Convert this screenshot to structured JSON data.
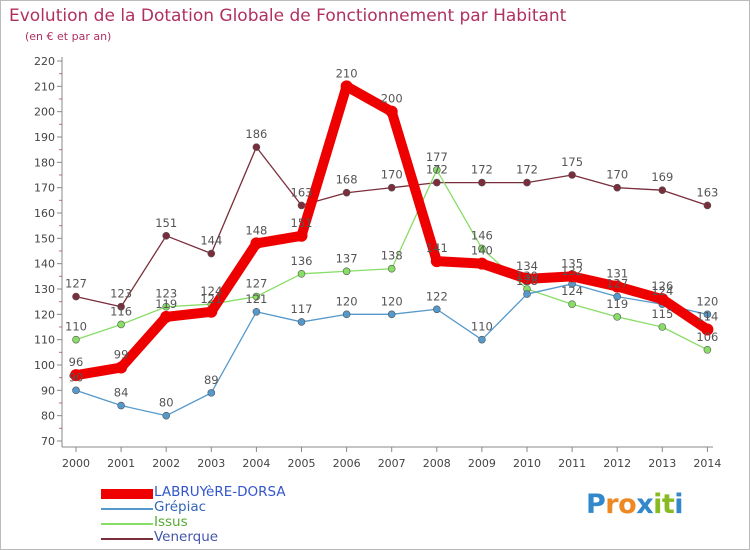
{
  "chart_data": {
    "type": "line",
    "title": "Evolution de la Dotation Globale de Fonctionnement par Habitant",
    "subtitle": "(en € et par an)",
    "xlabel": "",
    "ylabel": "",
    "categories": [
      "2000",
      "2001",
      "2002",
      "2003",
      "2004",
      "2005",
      "2006",
      "2007",
      "2008",
      "2009",
      "2010",
      "2011",
      "2012",
      "2013",
      "2014"
    ],
    "ylim": [
      70,
      220
    ],
    "yticks": [
      70,
      80,
      90,
      100,
      110,
      120,
      130,
      140,
      150,
      160,
      170,
      180,
      190,
      200,
      210,
      220
    ],
    "grid": false,
    "series": [
      {
        "name": "Venerque",
        "color": "#7a2d3b",
        "values": [
          127,
          123,
          151,
          144,
          186,
          163,
          168,
          170,
          172,
          172,
          172,
          175,
          170,
          169,
          163
        ]
      },
      {
        "name": "Issus",
        "color": "#88dd66",
        "values": [
          110,
          116,
          123,
          124,
          127,
          136,
          137,
          138,
          177,
          146,
          130,
          124,
          119,
          115,
          106
        ]
      },
      {
        "name": "Grépiac",
        "color": "#5599cc",
        "values": [
          90,
          84,
          80,
          89,
          121,
          117,
          120,
          120,
          122,
          110,
          128,
          132,
          127,
          124,
          120
        ]
      },
      {
        "name": "LABRUYèRE-DORSA",
        "color": "#ee0000",
        "values": [
          96,
          99,
          119,
          121,
          148,
          151,
          210,
          200,
          141,
          140,
          134,
          135,
          131,
          126,
          114
        ]
      }
    ],
    "legend": [
      {
        "name": "LABRUYèRE-DORSA",
        "color": "#ee0000",
        "thick": true
      },
      {
        "name": "Grépiac",
        "color": "#5599cc",
        "thick": false
      },
      {
        "name": "Issus",
        "color": "#88dd66",
        "thick": false
      },
      {
        "name": "Venerque",
        "color": "#7a2d3b",
        "thick": false
      }
    ]
  },
  "logo": {
    "text": "Proxiti"
  }
}
